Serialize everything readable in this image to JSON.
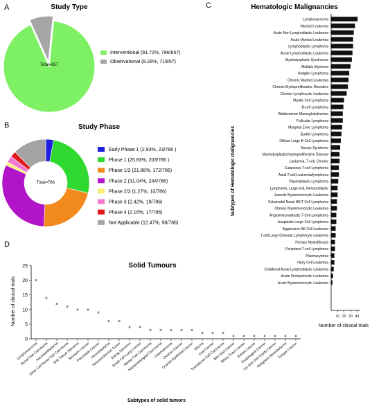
{
  "panel_letters": {
    "a": "A",
    "b": "B",
    "c": "C",
    "d": "D"
  },
  "chart_data": [
    {
      "type": "pie",
      "title": "Study Type",
      "center_label": "Total=857",
      "slices": [
        {
          "label": "Interventional (91.72%, 786/857)",
          "value": 786,
          "color": "#7ef064"
        },
        {
          "label": "Observational (8.28%, 71/857)",
          "value": 71,
          "color": "#a6a6a6"
        }
      ]
    },
    {
      "type": "pie",
      "title": "Study Phase",
      "center_label": "Total=786",
      "donut": true,
      "slices": [
        {
          "label": "Early Phase 1 (2.93%, 23/786 )",
          "value": 23,
          "color": "#1f1fe0"
        },
        {
          "label": "Phase 1 (25.83%, 203/786 )",
          "value": 203,
          "color": "#2fd92f"
        },
        {
          "label": "Phase 1/2 (21.88%, 172/786)",
          "value": 172,
          "color": "#f28a1d"
        },
        {
          "label": "Phase 2 (31.04%, 244/786)",
          "value": 244,
          "color": "#b215c8"
        },
        {
          "label": "Phase 2/3 (1.27%, 10/786)",
          "value": 10,
          "color": "#f5f075"
        },
        {
          "label": "Phase 3 (2.42%, 19/786)",
          "value": 19,
          "color": "#f07bd0"
        },
        {
          "label": "Phase 4 (2.16%, 17/786)",
          "value": 17,
          "color": "#e01a1a"
        },
        {
          "label": "Not Applicable (12.47%, 98/786)",
          "value": 98,
          "color": "#a3a3a3"
        }
      ]
    },
    {
      "type": "bar",
      "orientation": "horizontal",
      "title": "Hematologic Malignancies",
      "xlabel": "Number of clinical trials",
      "ylabel": "Subtypes of Hematologic malignancies",
      "xlim": [
        0,
        45
      ],
      "xticks": [
        "10",
        "20",
        "30",
        "40"
      ],
      "xtick_values": [
        10,
        20,
        30,
        40
      ],
      "categories": [
        "Lymphosarcoma",
        "Myeloid Leukemia",
        "Acute Non Lymphoblastic Leukemia",
        "Acute Myeloid Leukemia",
        "Lymphoblastic Lymphoma",
        "Acute Lymphoblastic Leukemia",
        "Myelodysplastic Syndromes",
        "Multiple Myeloma",
        "Hodgkin Lymphoma",
        "Chronic Myeloid Leukemia",
        "Chronic Myeloproliferative Disorders",
        "Chronic Lymphocytic Leukemia",
        "Mantle Cell Lymphoma",
        "B-cell Lymphoma",
        "Waldenstrom Macroglobulinemia",
        "Follicular Lymphoma",
        "Marginal Zone Lymphoma",
        "Burkitt Lymphoma",
        "Diffuse Large B-Cell Lymphoma",
        "Sezary Syndrome",
        "Myelodysplastic/myeloproliferative Disease",
        "Leukemia, T-cell, Chronic",
        "Cutaneous T-cell Lymphoma",
        "Adult T-cell Leukemia/lymphoma",
        "Plasmablastic Lymphoma",
        "Lymphoma, Large-cell, Immunoblastic",
        "Juvenile Myelomonocytic Leukemia",
        "Extranodal Nasal NK/T Cell Lymphoma",
        "Chronic Myelomonocytic Leukemia",
        "Angioimmunoblastic T-Cell Lymphoma",
        "Anaplastic Large Cell Lymphoma",
        "Aggressive NK Cell Leukemia",
        "T-cell Large Granular Lymphocyte Leukemia",
        "Primary Myelofibrosis",
        "Peripheral T-cell Lymphoma",
        "Plasmacytoma",
        "Hairy Cell Leukemia",
        "Childhood Acute Lymphoblastic Leukemia",
        "Acute Promyelocytic Leukemia",
        "Acute Myelomonocytic Leukemia"
      ],
      "values": [
        41,
        37,
        35,
        34,
        34,
        33,
        32,
        30,
        28,
        27,
        26,
        24,
        20,
        19,
        18,
        18,
        17,
        16,
        15,
        14,
        13,
        13,
        12,
        12,
        11,
        10,
        10,
        9,
        9,
        8,
        8,
        7,
        7,
        6,
        6,
        5,
        5,
        4,
        3,
        2
      ]
    },
    {
      "type": "scatter",
      "title": "Solid Tumours",
      "xlabel": "Subtypes of solid tumors",
      "ylabel": "Number of clinical trials",
      "ylim": [
        0,
        25
      ],
      "yticks": [
        0,
        5,
        10,
        15,
        20,
        25
      ],
      "categories": [
        "Lymphosarcoma",
        "Renal Cell Carcinoma",
        "Neuroepithelioma",
        "Clear Cell Renal Cell Carcinoma",
        "Soft Tissue Sarcoma",
        "Stomach Cancer",
        "Pancreatic Cancer",
        "Neuroblastoma",
        "Neuroendocrine Tumor",
        "Ewing Sarcoma",
        "Small Cell Lung Cancer",
        "Merkel Cell Carcinoma",
        "Nasopharyngeal Carcinoma",
        "Osteosarcoma",
        "Ovarian Cancer",
        "Ovarian Epithelial Cancer",
        "Glioma",
        "Oral Cancer",
        "Transitional Cell Carcinoma",
        "Bile Duct Cancer",
        "Biliary Tract Cancer",
        "Breast Cancer",
        "Esophageal Cancer",
        "Lip and Oral Cavity Cancer",
        "Malignant Mesothelioma",
        "Tongue Cancer"
      ],
      "values": [
        20,
        14,
        12,
        11,
        10,
        10,
        9,
        6,
        6,
        4,
        4,
        3,
        3,
        3,
        3,
        3,
        2,
        2,
        2,
        1,
        1,
        1,
        1,
        1,
        1,
        1
      ]
    }
  ]
}
